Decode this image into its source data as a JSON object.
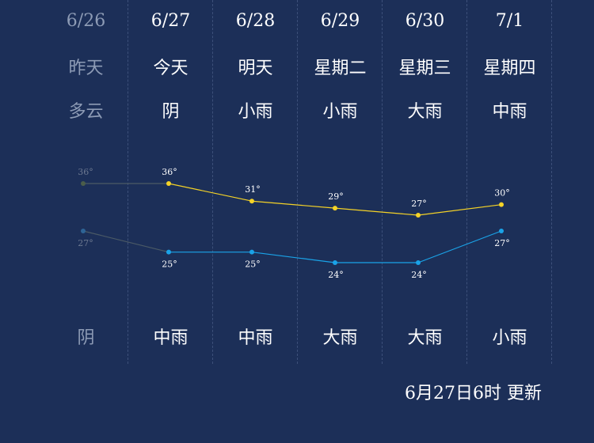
{
  "days": [
    {
      "date": "6/26",
      "name": "昨天",
      "day_weather": "多云",
      "night_weather": "阴",
      "past": true
    },
    {
      "date": "6/27",
      "name": "今天",
      "day_weather": "阴",
      "night_weather": "中雨",
      "past": false
    },
    {
      "date": "6/28",
      "name": "明天",
      "day_weather": "小雨",
      "night_weather": "中雨",
      "past": false
    },
    {
      "date": "6/29",
      "name": "星期二",
      "day_weather": "小雨",
      "night_weather": "大雨",
      "past": false
    },
    {
      "date": "6/30",
      "name": "星期三",
      "day_weather": "大雨",
      "night_weather": "大雨",
      "past": false
    },
    {
      "date": "7/1",
      "name": "星期四",
      "day_weather": "中雨",
      "night_weather": "小雨",
      "past": false
    }
  ],
  "chart_data": {
    "type": "line",
    "categories": [
      "6/26",
      "6/27",
      "6/28",
      "6/29",
      "6/30",
      "7/1"
    ],
    "series": [
      {
        "values": [
          36,
          36,
          31,
          29,
          27,
          30
        ],
        "color": "#f5d327"
      },
      {
        "values": [
          27,
          25,
          25,
          24,
          24,
          27
        ],
        "color": "#1aa3e8"
      }
    ],
    "labels": {
      "high": [
        "36°",
        "36°",
        "31°",
        "29°",
        "27°",
        "30°"
      ],
      "low": [
        "27°",
        "25°",
        "25°",
        "24°",
        "24°",
        "27°"
      ]
    },
    "past_color": "#4b5a66"
  },
  "update_text": "6月27日6时 更新"
}
